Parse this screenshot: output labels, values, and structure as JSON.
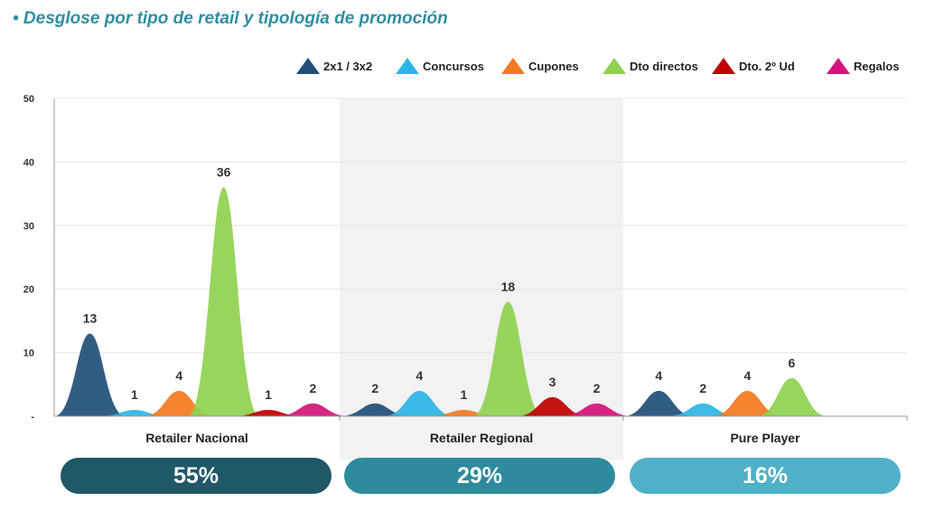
{
  "title": "• Desglose por tipo de retail y tipología de promoción",
  "chart_data": {
    "type": "area",
    "title": "• Desglose por tipo de retail y tipología de promoción",
    "ylim": [
      0,
      50
    ],
    "yticks": [
      "-",
      "10",
      "20",
      "30",
      "40",
      "50"
    ],
    "grid": true,
    "legend_position": "top-right",
    "categories": [
      "Retailer Nacional",
      "Retailer Regional",
      "Pure Player"
    ],
    "series": [
      {
        "name": "2x1 / 3x2",
        "color": "#1f4e79",
        "values": [
          13,
          2,
          4
        ]
      },
      {
        "name": "Concursos",
        "color": "#2bb5e6",
        "values": [
          1,
          4,
          2
        ]
      },
      {
        "name": "Cupones",
        "color": "#f47a20",
        "values": [
          4,
          1,
          4
        ]
      },
      {
        "name": "Dto directos",
        "color": "#8fd14f",
        "values": [
          36,
          18,
          6
        ]
      },
      {
        "name": "Dto. 2º Ud",
        "color": "#c00000",
        "values": [
          1,
          3,
          null
        ]
      },
      {
        "name": "Regalos",
        "color": "#d4147a",
        "values": [
          2,
          2,
          null
        ]
      }
    ]
  },
  "shares": [
    {
      "value": "55%",
      "color": "#1f5866"
    },
    {
      "value": "29%",
      "color": "#2e8a9d"
    },
    {
      "value": "16%",
      "color": "#4fb0c8"
    }
  ],
  "colors": {
    "title": "#2e8fa3",
    "axis": "#999999",
    "grid": "#e6e6e6",
    "highlight_band": "#f2f2f2"
  }
}
